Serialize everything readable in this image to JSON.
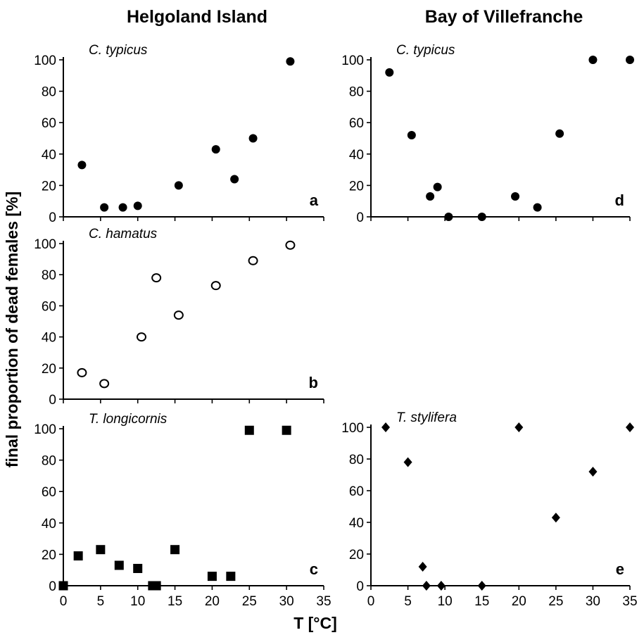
{
  "figure": {
    "col_titles": [
      "Helgoland Island",
      "Bay of Villefranche"
    ],
    "ylabel": "final proportion of dead females [%]",
    "xlabel": "T [°C]"
  },
  "chart_data": [
    {
      "id": "a",
      "type": "scatter",
      "letter": "a",
      "species": "C. typicus",
      "marker": "filled-circle",
      "color": "#000000",
      "ylim": [
        0,
        100
      ],
      "yticks": [
        0,
        20,
        40,
        60,
        80,
        100
      ],
      "xlim": [
        0,
        35
      ],
      "xticks": [
        0,
        5,
        10,
        15,
        20,
        25,
        30,
        35
      ],
      "show_x_tick_labels": false,
      "x": [
        2.5,
        5.5,
        8,
        10,
        15.5,
        20.5,
        23,
        25.5,
        30.5
      ],
      "y": [
        33,
        6,
        6,
        7,
        20,
        43,
        24,
        50,
        99
      ]
    },
    {
      "id": "b",
      "type": "scatter",
      "letter": "b",
      "species": "C. hamatus",
      "marker": "open-circle",
      "color": "#000000",
      "ylim": [
        0,
        100
      ],
      "yticks": [
        0,
        20,
        40,
        60,
        80,
        100
      ],
      "xlim": [
        0,
        35
      ],
      "xticks": [
        0,
        5,
        10,
        15,
        20,
        25,
        30,
        35
      ],
      "show_x_tick_labels": false,
      "x": [
        2.5,
        5.5,
        10.5,
        12.5,
        15.5,
        20.5,
        25.5,
        30.5
      ],
      "y": [
        17,
        10,
        40,
        78,
        54,
        73,
        89,
        99
      ]
    },
    {
      "id": "c",
      "type": "scatter",
      "letter": "c",
      "species": "T. longicornis",
      "marker": "filled-square",
      "color": "#000000",
      "ylim": [
        0,
        100
      ],
      "yticks": [
        0,
        20,
        40,
        60,
        80,
        100
      ],
      "xlim": [
        0,
        35
      ],
      "xticks": [
        0,
        5,
        10,
        15,
        20,
        25,
        30,
        35
      ],
      "show_x_tick_labels": true,
      "x": [
        0,
        2,
        5,
        7.5,
        10,
        12,
        12.5,
        15,
        20,
        22.5,
        25,
        30
      ],
      "y": [
        0,
        19,
        23,
        13,
        11,
        0,
        0,
        23,
        6,
        6,
        99,
        99
      ]
    },
    {
      "id": "d",
      "type": "scatter",
      "letter": "d",
      "species": "C. typicus",
      "marker": "filled-circle",
      "color": "#000000",
      "ylim": [
        0,
        100
      ],
      "yticks": [
        0,
        20,
        40,
        60,
        80,
        100
      ],
      "xlim": [
        0,
        35
      ],
      "xticks": [
        0,
        5,
        10,
        15,
        20,
        25,
        30,
        35
      ],
      "show_x_tick_labels": false,
      "x": [
        2.5,
        5.5,
        8,
        9,
        10.5,
        15,
        19.5,
        22.5,
        25.5,
        30,
        35
      ],
      "y": [
        92,
        52,
        13,
        19,
        0,
        0,
        13,
        6,
        53,
        100,
        100
      ]
    },
    {
      "id": "e",
      "type": "scatter",
      "letter": "e",
      "species": "T. stylifera",
      "marker": "filled-diamond",
      "color": "#000000",
      "ylim": [
        0,
        100
      ],
      "yticks": [
        0,
        20,
        40,
        60,
        80,
        100
      ],
      "xlim": [
        0,
        35
      ],
      "xticks": [
        0,
        5,
        10,
        15,
        20,
        25,
        30,
        35
      ],
      "show_x_tick_labels": true,
      "x": [
        2,
        5,
        7,
        7.5,
        9.5,
        15,
        20,
        25,
        30,
        35
      ],
      "y": [
        100,
        78,
        12,
        0,
        0,
        0,
        100,
        43,
        72,
        100
      ]
    }
  ]
}
